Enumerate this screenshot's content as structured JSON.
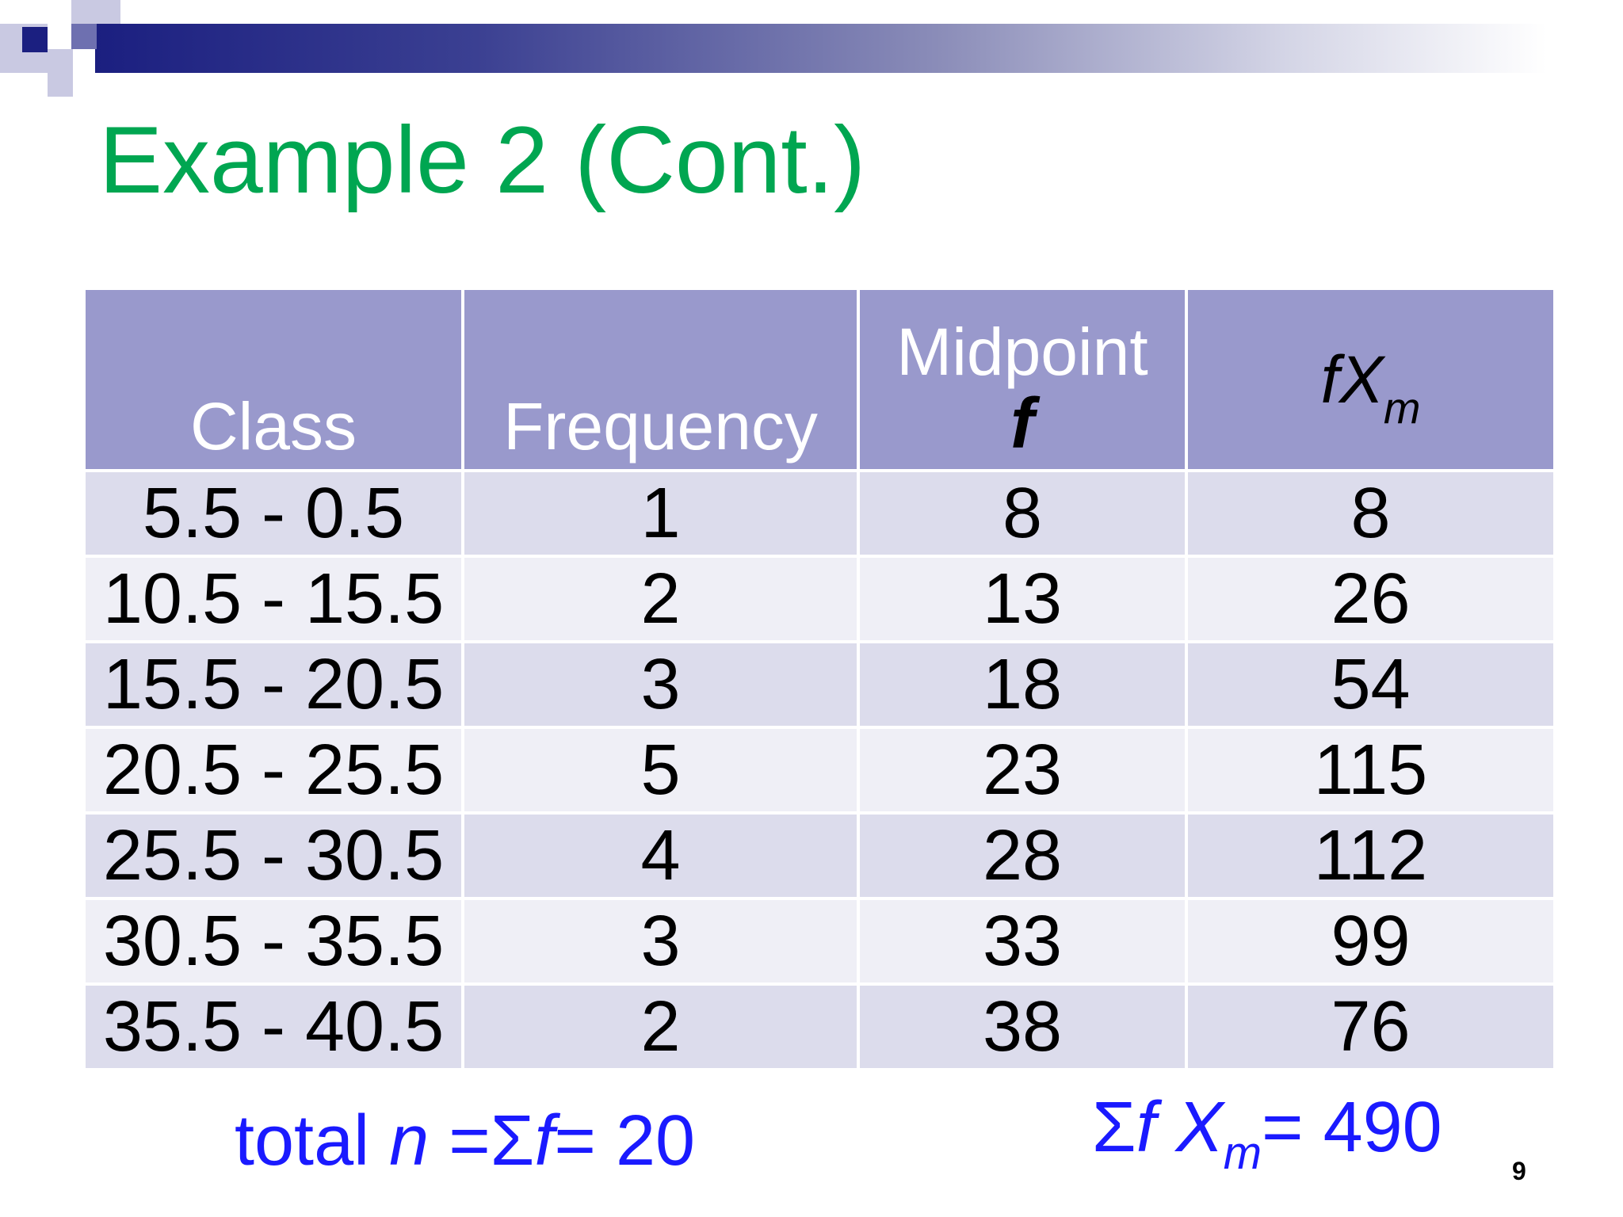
{
  "slide": {
    "title": "Example 2 (Cont.)",
    "page_number": "9",
    "colors": {
      "title": "#00a651",
      "header_fill": "#9999cc",
      "row_dark": "#dcdcec",
      "row_light": "#efeff6",
      "footer_text": "#1a1aff"
    }
  },
  "table": {
    "headers": {
      "class": "Class",
      "frequency": "Frequency",
      "midpoint": "Midpoint",
      "midpoint_symbol": "f",
      "fx_main": "fX",
      "fx_sub": "m"
    },
    "rows": [
      {
        "class": "5.5 - 0.5",
        "frequency": "1",
        "midpoint": "8",
        "fx": "8"
      },
      {
        "class": "10.5 - 15.5",
        "frequency": "2",
        "midpoint": "13",
        "fx": "26"
      },
      {
        "class": "15.5 - 20.5",
        "frequency": "3",
        "midpoint": "18",
        "fx": "54"
      },
      {
        "class": "20.5 - 25.5",
        "frequency": "5",
        "midpoint": "23",
        "fx": "115"
      },
      {
        "class": "25.5 - 30.5",
        "frequency": "4",
        "midpoint": "28",
        "fx": "112"
      },
      {
        "class": "30.5 - 35.5",
        "frequency": "3",
        "midpoint": "33",
        "fx": "99"
      },
      {
        "class": "35.5 - 40.5",
        "frequency": "2",
        "midpoint": "38",
        "fx": "76"
      }
    ]
  },
  "footer": {
    "left_prefix": "total ",
    "left_n": "n",
    "left_eq": " =Σ",
    "left_f": "f",
    "left_value": "= 20",
    "right_sigma": "Σ",
    "right_f": "f ",
    "right_x": "X",
    "right_sub": "m",
    "right_value": "= 490"
  }
}
